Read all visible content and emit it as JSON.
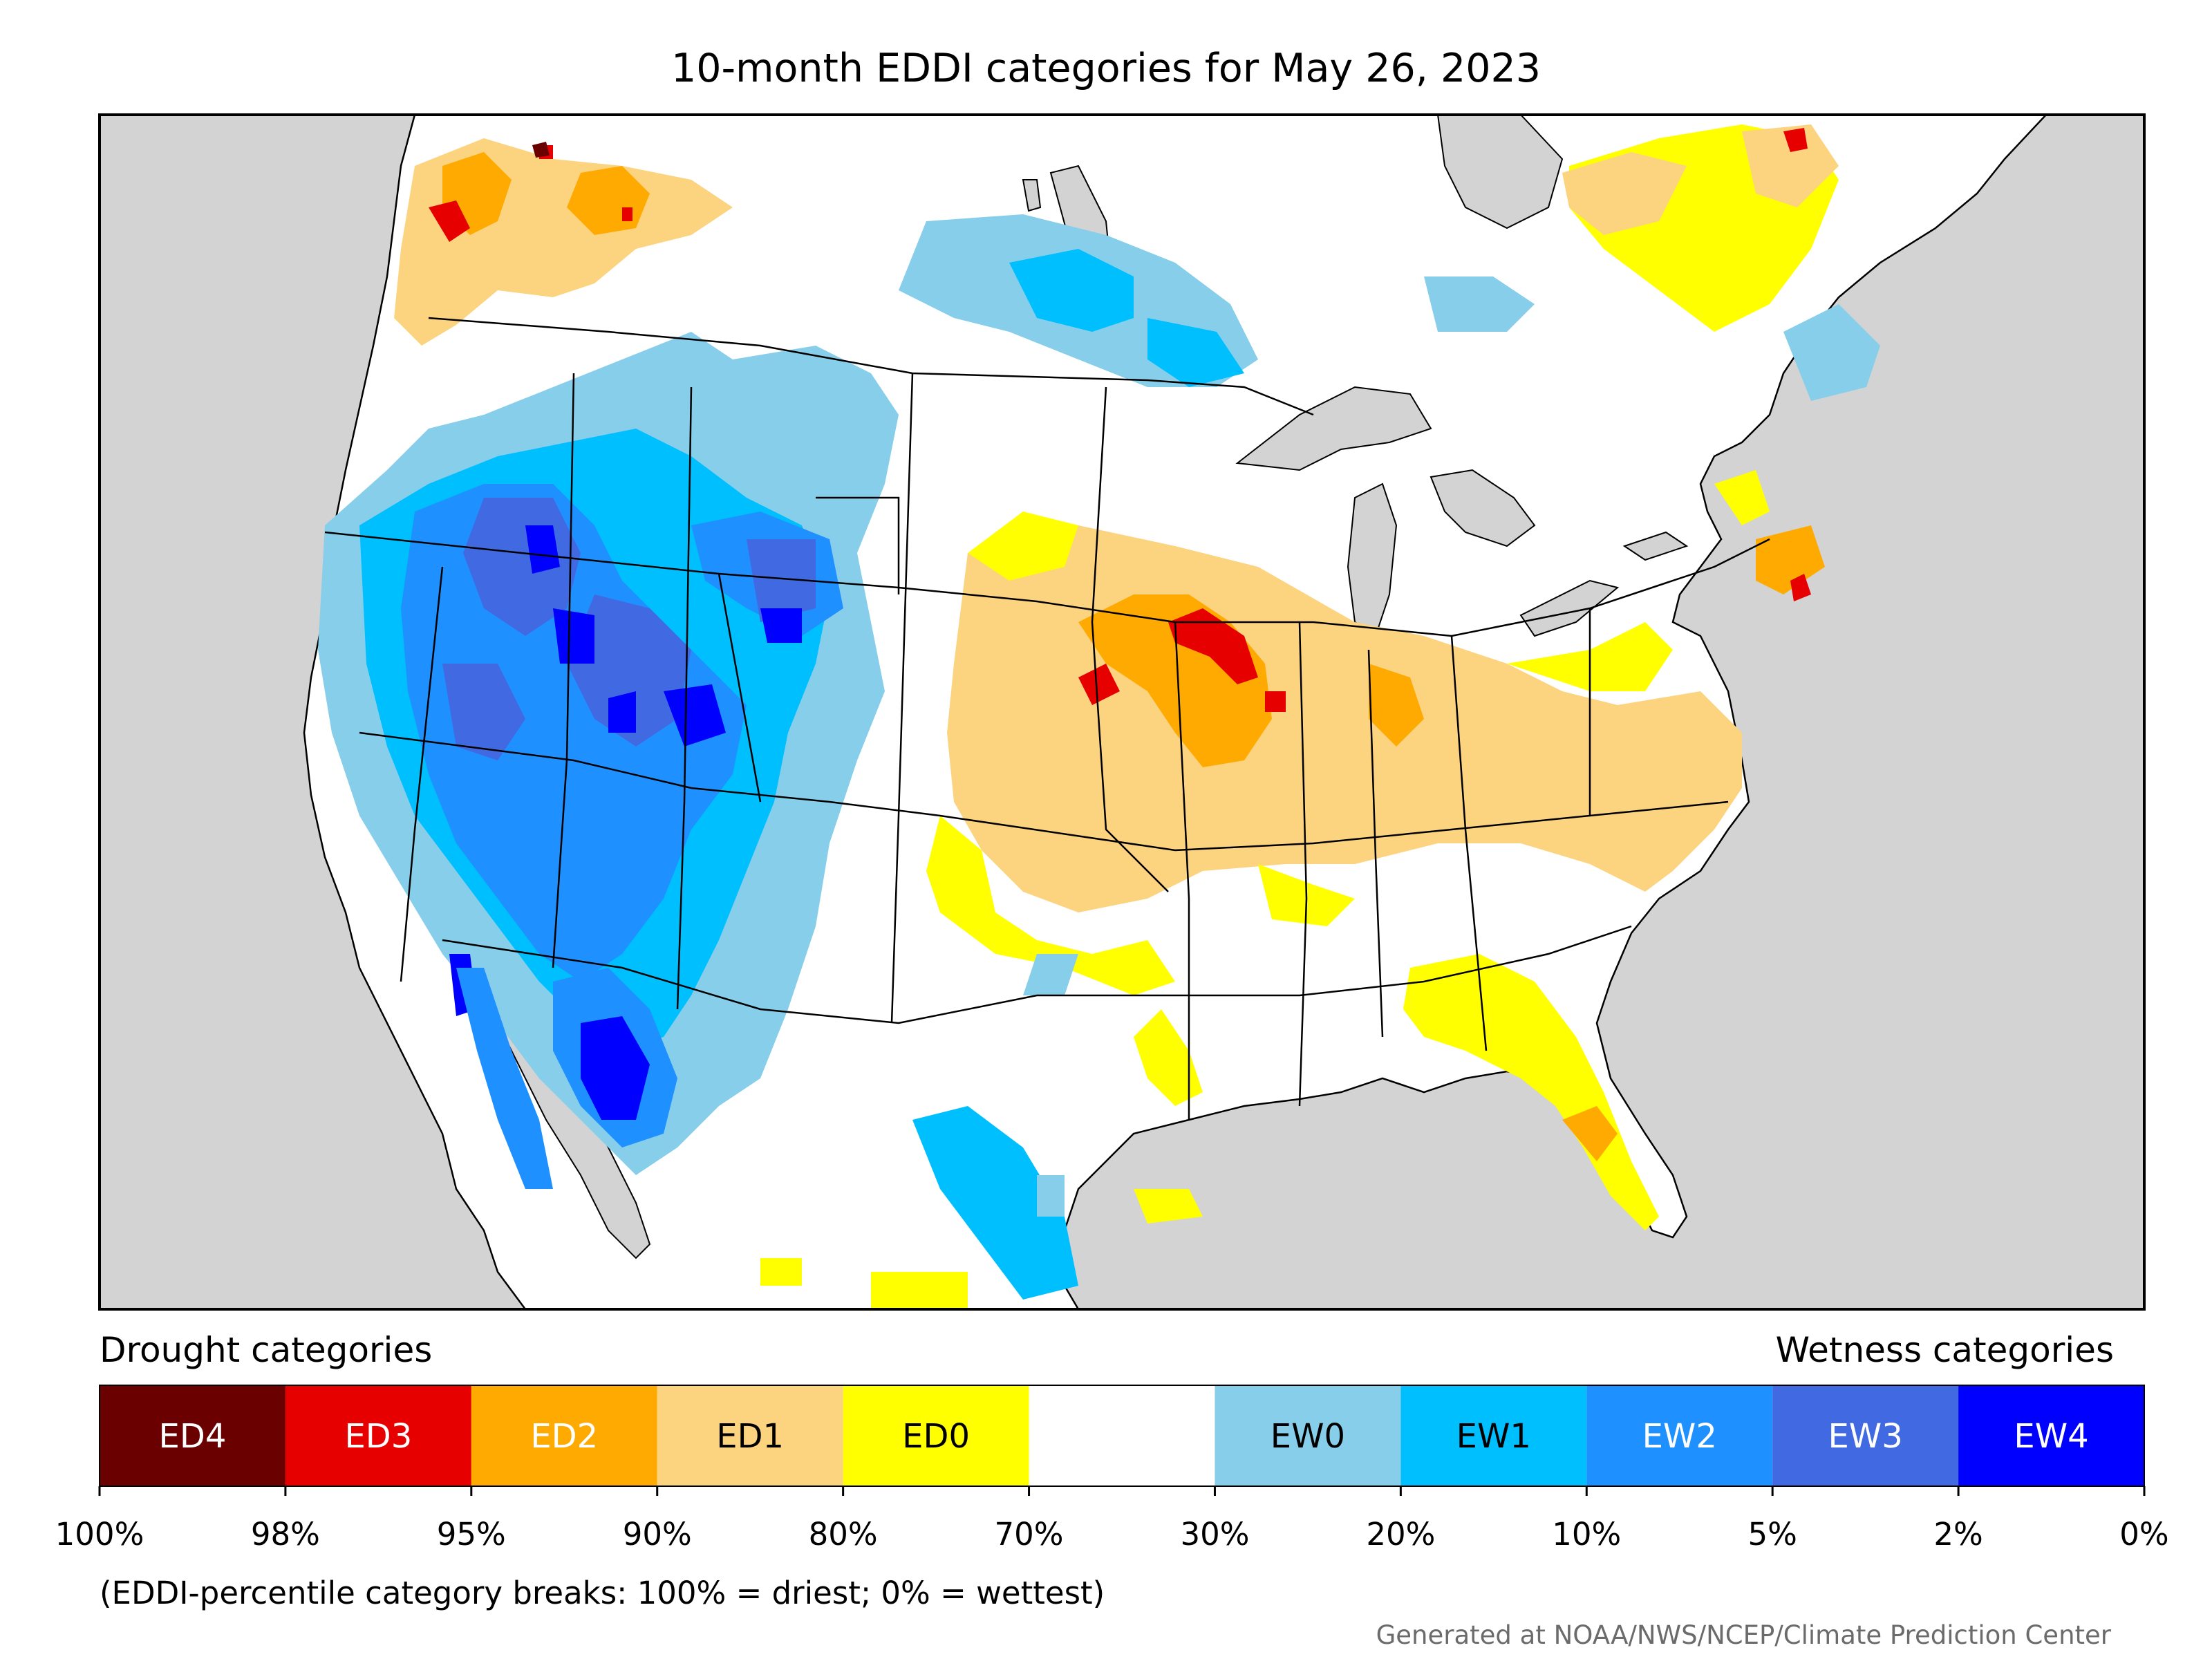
{
  "title": "10-month EDDI categories for May 26, 2023",
  "legend": {
    "drought_caption": "Drought categories",
    "wetness_caption": "Wetness categories",
    "categories": [
      {
        "label": "ED4",
        "color": "#6b0000",
        "text_color": "#ffffff"
      },
      {
        "label": "ED3",
        "color": "#e60000",
        "text_color": "#ffffff"
      },
      {
        "label": "ED2",
        "color": "#ffaa00",
        "text_color": "#ffffff"
      },
      {
        "label": "ED1",
        "color": "#fcd37f",
        "text_color": "#000000"
      },
      {
        "label": "ED0",
        "color": "#ffff00",
        "text_color": "#000000"
      },
      {
        "label": "",
        "color": "#ffffff",
        "text_color": "#000000"
      },
      {
        "label": "EW0",
        "color": "#87ceeb",
        "text_color": "#000000"
      },
      {
        "label": "EW1",
        "color": "#00bfff",
        "text_color": "#000000"
      },
      {
        "label": "EW2",
        "color": "#1e90ff",
        "text_color": "#ffffff"
      },
      {
        "label": "EW3",
        "color": "#4169e1",
        "text_color": "#ffffff"
      },
      {
        "label": "EW4",
        "color": "#0000ff",
        "text_color": "#ffffff"
      }
    ],
    "tick_labels": [
      "100%",
      "98%",
      "95%",
      "90%",
      "80%",
      "70%",
      "30%",
      "20%",
      "10%",
      "5%",
      "2%",
      "0%"
    ],
    "note": "(EDDI-percentile category breaks: 100% = driest; 0% = wettest)"
  },
  "credit": "Generated at NOAA/NWS/NCEP/Climate Prediction Center",
  "colors": {
    "ocean": "#d3d3d3",
    "land": "#ffffff",
    "border": "#000000"
  }
}
